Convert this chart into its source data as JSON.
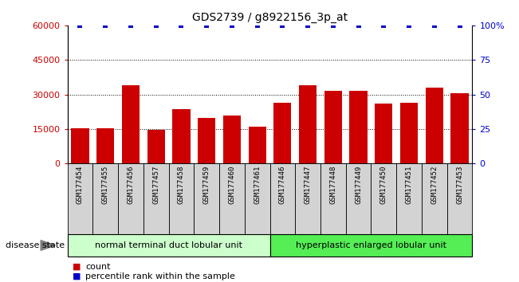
{
  "title": "GDS2739 / g8922156_3p_at",
  "samples": [
    "GSM177454",
    "GSM177455",
    "GSM177456",
    "GSM177457",
    "GSM177458",
    "GSM177459",
    "GSM177460",
    "GSM177461",
    "GSM177446",
    "GSM177447",
    "GSM177448",
    "GSM177449",
    "GSM177450",
    "GSM177451",
    "GSM177452",
    "GSM177453"
  ],
  "counts": [
    15500,
    15500,
    34000,
    14500,
    23500,
    20000,
    21000,
    16000,
    26500,
    34000,
    31500,
    31500,
    26000,
    26500,
    33000,
    30500
  ],
  "percentiles": [
    100,
    100,
    100,
    100,
    100,
    100,
    100,
    100,
    100,
    100,
    100,
    100,
    100,
    100,
    100,
    100
  ],
  "group1_label": "normal terminal duct lobular unit",
  "group2_label": "hyperplastic enlarged lobular unit",
  "group1_count": 8,
  "group2_count": 8,
  "bar_color": "#cc0000",
  "percentile_color": "#0000cc",
  "ylim_left": [
    0,
    60000
  ],
  "ylim_right": [
    0,
    100
  ],
  "yticks_left": [
    0,
    15000,
    30000,
    45000,
    60000
  ],
  "ytick_labels_left": [
    "0",
    "15000",
    "30000",
    "45000",
    "60000"
  ],
  "yticks_right": [
    0,
    25,
    50,
    75,
    100
  ],
  "ytick_labels_right": [
    "0",
    "25",
    "50",
    "75",
    "100%"
  ],
  "disease_state_label": "disease state",
  "legend_count_label": "count",
  "legend_percentile_label": "percentile rank within the sample",
  "bg_color": "#ffffff",
  "plot_bg_color": "#ffffff",
  "group1_bg": "#ccffcc",
  "group2_bg": "#55ee55",
  "xticklabel_bg": "#d3d3d3"
}
